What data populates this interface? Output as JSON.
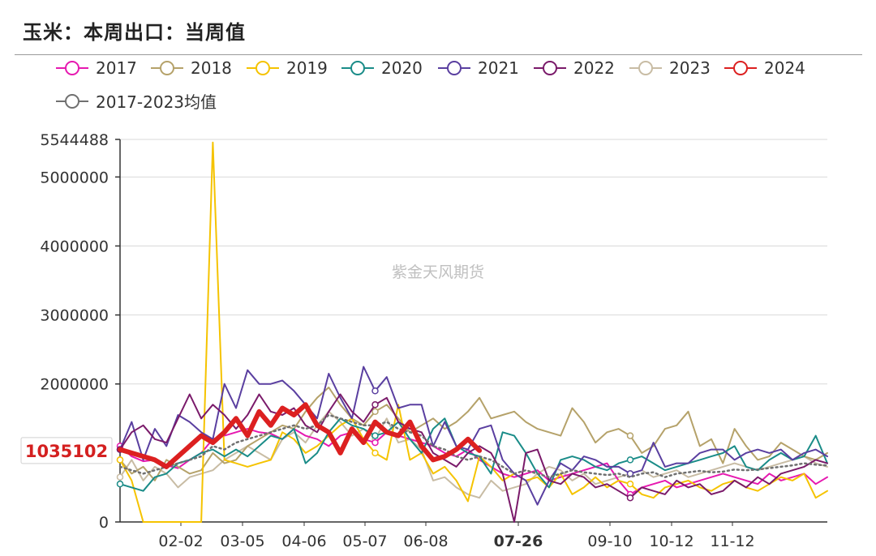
{
  "header": {
    "title": "玉米：本周出口：当周值"
  },
  "watermark": "紫金天风期货",
  "chart_data": {
    "type": "line",
    "title": "玉米：本周出口：当周值",
    "ylim": [
      0,
      5544488
    ],
    "y_ticks": [
      "0",
      "2000000",
      "3000000",
      "4000000",
      "5000000",
      "5544488"
    ],
    "x_ticks": [
      "02-02",
      "03-05",
      "04-06",
      "05-07",
      "06-08",
      "07-26",
      "09-10",
      "10-12",
      "11-12"
    ],
    "highlight_x": "07-26",
    "highlight_y": "1035102",
    "legend_position": "top",
    "grid": true,
    "series": [
      {
        "name": "2017",
        "color": "#e619b0",
        "width": 2,
        "values": [
          1100000,
          950000,
          880000,
          900000,
          820000,
          780000,
          900000,
          1000000,
          1200000,
          1250000,
          1300000,
          1350000,
          1300000,
          1280000,
          1200000,
          1350000,
          1250000,
          1200000,
          1100000,
          1250000,
          1300000,
          1200000,
          1150000,
          1300000,
          1250000,
          1200000,
          1150000,
          1100000,
          1000000,
          950000,
          1050000,
          900000,
          800000,
          700000,
          650000,
          700000,
          750000,
          600000,
          650000,
          700000,
          750000,
          800000,
          850000,
          600000,
          400000,
          500000,
          550000,
          600000,
          500000,
          550000,
          600000,
          650000,
          700000,
          650000,
          600000,
          550000,
          700000,
          600000,
          650000,
          700000,
          550000,
          650000
        ]
      },
      {
        "name": "2018",
        "color": "#b5a26a",
        "width": 2,
        "values": [
          900000,
          700000,
          800000,
          600000,
          900000,
          800000,
          700000,
          750000,
          1000000,
          850000,
          900000,
          1100000,
          1200000,
          1300000,
          1400000,
          1350000,
          1600000,
          1800000,
          1950000,
          1700000,
          1500000,
          1400000,
          1600000,
          1700000,
          1500000,
          1300000,
          1400000,
          1500000,
          1350000,
          1450000,
          1600000,
          1800000,
          1500000,
          1550000,
          1600000,
          1450000,
          1350000,
          1300000,
          1250000,
          1650000,
          1450000,
          1150000,
          1300000,
          1350000,
          1250000,
          1000000,
          1100000,
          1350000,
          1400000,
          1600000,
          1100000,
          1200000,
          850000,
          1350000,
          1100000,
          900000,
          950000,
          1150000,
          1050000,
          950000,
          900000,
          1000000
        ]
      },
      {
        "name": "2019",
        "color": "#f5c300",
        "width": 2,
        "values": [
          900000,
          600000,
          0,
          0,
          0,
          0,
          0,
          0,
          5500000,
          900000,
          850000,
          800000,
          850000,
          900000,
          1300000,
          1200000,
          1000000,
          1100000,
          1250000,
          1400000,
          1500000,
          1200000,
          1000000,
          900000,
          1700000,
          900000,
          1000000,
          700000,
          800000,
          600000,
          300000,
          950000,
          800000,
          600000,
          700000,
          600000,
          650000,
          500000,
          700000,
          400000,
          500000,
          650000,
          500000,
          600000,
          550000,
          400000,
          350000,
          500000,
          550000,
          600000,
          500000,
          450000,
          550000,
          600000,
          500000,
          450000,
          550000,
          650000,
          600000,
          700000,
          350000,
          450000
        ]
      },
      {
        "name": "2020",
        "color": "#1a8c88",
        "width": 2,
        "values": [
          550000,
          500000,
          450000,
          650000,
          700000,
          850000,
          900000,
          1000000,
          1050000,
          950000,
          1050000,
          950000,
          1100000,
          1250000,
          1200000,
          1350000,
          850000,
          1000000,
          1300000,
          1500000,
          1400000,
          1350000,
          1250000,
          1300000,
          1450000,
          1200000,
          1000000,
          1350000,
          1500000,
          1100000,
          1000000,
          950000,
          700000,
          1300000,
          1250000,
          1000000,
          700000,
          500000,
          900000,
          950000,
          900000,
          800000,
          750000,
          850000,
          900000,
          950000,
          850000,
          750000,
          800000,
          850000,
          900000,
          950000,
          1000000,
          1100000,
          800000,
          750000,
          900000,
          1000000,
          900000,
          950000,
          1250000,
          850000
        ]
      },
      {
        "name": "2021",
        "color": "#5a3fa0",
        "width": 2,
        "values": [
          1050000,
          1450000,
          900000,
          1350000,
          1100000,
          1550000,
          1450000,
          1300000,
          1200000,
          2000000,
          1650000,
          2200000,
          2000000,
          2000000,
          2050000,
          1900000,
          1700000,
          1500000,
          2150000,
          1800000,
          1500000,
          2250000,
          1900000,
          2100000,
          1650000,
          1700000,
          1700000,
          1100000,
          1450000,
          1100000,
          1050000,
          1350000,
          1400000,
          900000,
          700000,
          600000,
          250000,
          600000,
          850000,
          750000,
          950000,
          900000,
          800000,
          800000,
          700000,
          750000,
          1150000,
          800000,
          850000,
          850000,
          1000000,
          1050000,
          1050000,
          900000,
          1000000,
          1050000,
          1000000,
          1050000,
          900000,
          1000000,
          1050000,
          950000
        ]
      },
      {
        "name": "2022",
        "color": "#7a1a6a",
        "width": 2,
        "values": [
          1050000,
          1300000,
          1400000,
          1200000,
          1150000,
          1500000,
          1850000,
          1500000,
          1700000,
          1550000,
          1350000,
          1550000,
          1850000,
          1600000,
          1550000,
          1650000,
          1400000,
          1300000,
          1600000,
          1850000,
          1600000,
          1450000,
          1700000,
          1800000,
          1450000,
          1350000,
          1300000,
          1000000,
          900000,
          800000,
          1000000,
          1100000,
          1000000,
          700000,
          0,
          1000000,
          1050000,
          600000,
          550000,
          700000,
          650000,
          500000,
          550000,
          450000,
          350000,
          500000,
          450000,
          400000,
          600000,
          500000,
          550000,
          400000,
          450000,
          600000,
          500000,
          650000,
          550000,
          700000,
          750000,
          800000,
          900000,
          850000
        ]
      },
      {
        "name": "2023",
        "color": "#c8bca4",
        "width": 2,
        "values": [
          650000,
          900000,
          600000,
          800000,
          700000,
          500000,
          650000,
          700000,
          750000,
          900000,
          1000000,
          1100000,
          1000000,
          900000,
          1200000,
          1300000,
          1150000,
          1400000,
          1600000,
          1450000,
          1250000,
          1350000,
          1200000,
          1500000,
          1150000,
          1200000,
          1050000,
          600000,
          650000,
          500000,
          400000,
          350000,
          600000,
          450000,
          500000,
          550000,
          700000,
          800000,
          750000,
          600000,
          700000,
          550000,
          600000,
          650000,
          700000,
          750000,
          650000,
          700000,
          750000,
          650000,
          700000,
          750000,
          800000,
          850000,
          800000,
          750000,
          800000,
          850000,
          900000,
          950000,
          850000,
          800000
        ]
      },
      {
        "name": "2024",
        "color": "#dc2020",
        "width": 6,
        "values": [
          1050000,
          1000000,
          950000,
          900000,
          800000,
          950000,
          1100000,
          1250000,
          1150000,
          1300000,
          1500000,
          1250000,
          1600000,
          1400000,
          1650000,
          1550000,
          1700000,
          1400000,
          1300000,
          1000000,
          1350000,
          1150000,
          1450000,
          1300000,
          1250000,
          1450000,
          1100000,
          900000,
          950000,
          1050000,
          1200000,
          1035102
        ]
      },
      {
        "name": "2017-2023均值",
        "color": "#707070",
        "width": 2.5,
        "dashed": true,
        "values": [
          800000,
          750000,
          700000,
          750000,
          800000,
          850000,
          900000,
          950000,
          1100000,
          1050000,
          1150000,
          1200000,
          1250000,
          1300000,
          1350000,
          1400000,
          1350000,
          1400000,
          1550000,
          1500000,
          1450000,
          1400000,
          1400000,
          1450000,
          1350000,
          1300000,
          1250000,
          1100000,
          1050000,
          950000,
          900000,
          950000,
          900000,
          800000,
          700000,
          750000,
          700000,
          650000,
          700000,
          750000,
          720000,
          700000,
          680000,
          700000,
          650000,
          700000,
          720000,
          650000,
          700000,
          720000,
          740000,
          720000,
          730000,
          760000,
          750000,
          760000,
          780000,
          800000,
          820000,
          850000,
          830000,
          820000
        ]
      }
    ]
  }
}
